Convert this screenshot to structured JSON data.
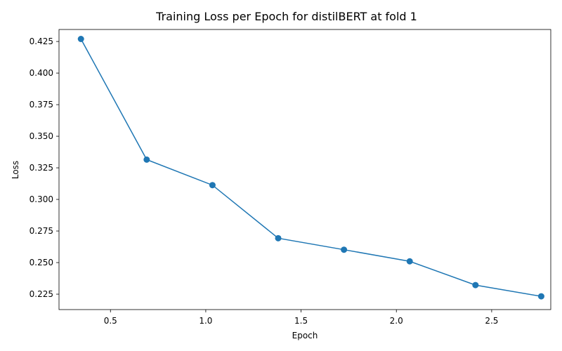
{
  "chart_data": {
    "type": "line",
    "title": "Training Loss per Epoch for distilBERT at fold 1",
    "xlabel": "Epoch",
    "ylabel": "Loss",
    "xlim": [
      0.23,
      2.81
    ],
    "ylim": [
      0.2128,
      0.4345
    ],
    "xticks": [
      0.5,
      1.0,
      1.5,
      2.0,
      2.5
    ],
    "xtick_labels": [
      "0.5",
      "1.0",
      "1.5",
      "2.0",
      "2.5"
    ],
    "yticks": [
      0.225,
      0.25,
      0.275,
      0.3,
      0.325,
      0.35,
      0.375,
      0.4,
      0.425
    ],
    "ytick_labels": [
      "0.225",
      "0.250",
      "0.275",
      "0.300",
      "0.325",
      "0.350",
      "0.375",
      "0.400",
      "0.425"
    ],
    "grid": false,
    "series": [
      {
        "color": "#1f77b4",
        "marker": "circle",
        "x": [
          0.345,
          0.69,
          1.035,
          1.38,
          1.725,
          2.07,
          2.415,
          2.76
        ],
        "y": [
          0.427,
          0.3315,
          0.3113,
          0.2693,
          0.2602,
          0.251,
          0.2322,
          0.2233
        ]
      }
    ]
  }
}
